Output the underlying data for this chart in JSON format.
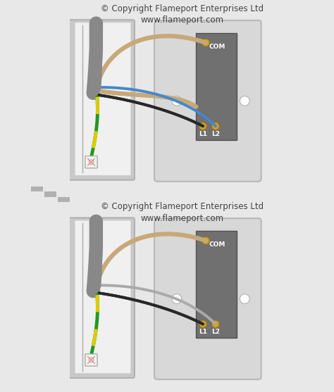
{
  "bg_color": "#e8e8e8",
  "title_line1": "© Copyright Flameport Enterprises Ltd",
  "title_line2": "www.flameport.com",
  "title_color": "#444444",
  "title_fontsize": 8.5,
  "panel_color": "#d4d4d4",
  "panel_edge": "#b0b0b0",
  "panel_inner_color": "#e0e0e0",
  "backbox_outer_color": "#c8c8c8",
  "backbox_outer_edge": "#aaaaaa",
  "backbox_inner_color": "#f0f0f0",
  "backbox_inner_edge": "#cccccc",
  "cable_sheath_color": "#888888",
  "switch_plate_color": "#d8d8d8",
  "switch_plate_edge": "#b8b8b8",
  "switch_block_color": "#707070",
  "switch_block_edge": "#505050",
  "screw_color": "#c8a030",
  "screw_edge": "#a07010",
  "wire_tan": "#c8a878",
  "wire_black": "#282828",
  "wire_blue": "#4488cc",
  "wire_green": "#229922",
  "wire_yellow": "#ddcc00",
  "wire_gray": "#aaaaaa",
  "hole_color": "#ffffff",
  "hole_edge": "#b0b0b0",
  "terminal_COM": "COM",
  "terminal_L1": "L1",
  "terminal_L2": "L2",
  "terminal_text_color": "#ffffff",
  "terminal_fontsize": 6.5,
  "dot_color": "#b0b0b0",
  "earth_box_color": "#f5f0ee",
  "earth_box_edge": "#aaaaaa"
}
